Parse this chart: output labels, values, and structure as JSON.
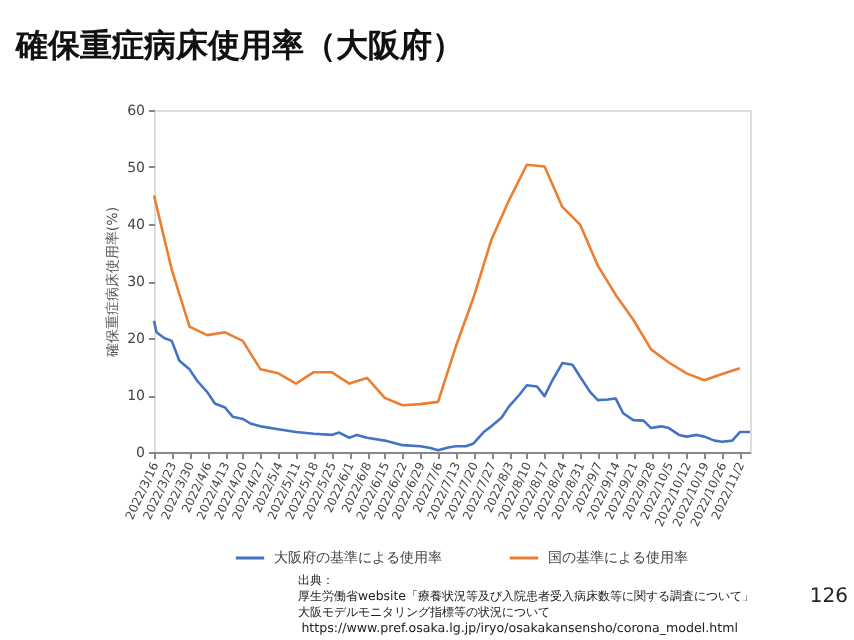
{
  "chart_data": {
    "type": "line",
    "title": "確保重症病床使用率（大阪府）",
    "ylabel": "確保重症病床使用率(%)",
    "xlim": [
      "2022-03-16",
      "2022-11-06"
    ],
    "xticks": [
      {
        "value": "2022-03-16",
        "label": "2022/3/16"
      },
      {
        "value": "2022-03-23",
        "label": "2022/3/23"
      },
      {
        "value": "2022-03-30",
        "label": "2022/3/30"
      },
      {
        "value": "2022-04-06",
        "label": "2022/4/6"
      },
      {
        "value": "2022-04-13",
        "label": "2022/4/13"
      },
      {
        "value": "2022-04-20",
        "label": "2022/4/20"
      },
      {
        "value": "2022-04-27",
        "label": "2022/4/27"
      },
      {
        "value": "2022-05-04",
        "label": "2022/5/4"
      },
      {
        "value": "2022-05-11",
        "label": "2022/5/11"
      },
      {
        "value": "2022-05-18",
        "label": "2022/5/18"
      },
      {
        "value": "2022-05-25",
        "label": "2022/5/25"
      },
      {
        "value": "2022-06-01",
        "label": "2022/6/1"
      },
      {
        "value": "2022-06-08",
        "label": "2022/6/8"
      },
      {
        "value": "2022-06-15",
        "label": "2022/6/15"
      },
      {
        "value": "2022-06-22",
        "label": "2022/6/22"
      },
      {
        "value": "2022-06-29",
        "label": "2022/6/29"
      },
      {
        "value": "2022-07-06",
        "label": "2022/7/6"
      },
      {
        "value": "2022-07-13",
        "label": "2022/7/13"
      },
      {
        "value": "2022-07-20",
        "label": "2022/7/20"
      },
      {
        "value": "2022-07-27",
        "label": "2022/7/27"
      },
      {
        "value": "2022-08-03",
        "label": "2022/8/3"
      },
      {
        "value": "2022-08-10",
        "label": "2022/8/10"
      },
      {
        "value": "2022-08-17",
        "label": "2022/8/17"
      },
      {
        "value": "2022-08-24",
        "label": "2022/8/24"
      },
      {
        "value": "2022-08-31",
        "label": "2022/8/31"
      },
      {
        "value": "2022-09-07",
        "label": "2022/9/7"
      },
      {
        "value": "2022-09-14",
        "label": "2022/9/14"
      },
      {
        "value": "2022-09-21",
        "label": "2022/9/21"
      },
      {
        "value": "2022-09-28",
        "label": "2022/9/28"
      },
      {
        "value": "2022-10-05",
        "label": "2022/10/5"
      },
      {
        "value": "2022-10-12",
        "label": "2022/10/12"
      },
      {
        "value": "2022-10-19",
        "label": "2022/10/19"
      },
      {
        "value": "2022-10-26",
        "label": "2022/10/26"
      },
      {
        "value": "2022-11-02",
        "label": "2022/11/2"
      }
    ],
    "ylim": [
      0,
      60
    ],
    "yticks": [
      0,
      10,
      20,
      30,
      40,
      50,
      60
    ],
    "grid": false,
    "legend": "bottom",
    "marker": "none",
    "line_style": "solid",
    "series": [
      {
        "name": "大阪府の基準による使用率",
        "color": "#4472c4",
        "x": [
          "2022-03-16",
          "2022-03-17",
          "2022-03-20",
          "2022-03-23",
          "2022-03-26",
          "2022-03-30",
          "2022-04-02",
          "2022-04-06",
          "2022-04-09",
          "2022-04-13",
          "2022-04-16",
          "2022-04-20",
          "2022-04-23",
          "2022-04-27",
          "2022-05-04",
          "2022-05-11",
          "2022-05-18",
          "2022-05-25",
          "2022-05-28",
          "2022-06-01",
          "2022-06-04",
          "2022-06-08",
          "2022-06-15",
          "2022-06-22",
          "2022-06-29",
          "2022-07-03",
          "2022-07-06",
          "2022-07-10",
          "2022-07-13",
          "2022-07-17",
          "2022-07-20",
          "2022-07-24",
          "2022-07-27",
          "2022-07-31",
          "2022-08-03",
          "2022-08-07",
          "2022-08-10",
          "2022-08-14",
          "2022-08-17",
          "2022-08-20",
          "2022-08-24",
          "2022-08-28",
          "2022-08-31",
          "2022-09-04",
          "2022-09-07",
          "2022-09-11",
          "2022-09-14",
          "2022-09-17",
          "2022-09-21",
          "2022-09-25",
          "2022-09-28",
          "2022-10-02",
          "2022-10-05",
          "2022-10-09",
          "2022-10-12",
          "2022-10-16",
          "2022-10-19",
          "2022-10-23",
          "2022-10-26",
          "2022-10-30",
          "2022-11-02",
          "2022-11-06"
        ],
        "values": [
          23,
          21,
          20,
          19.5,
          16,
          14.5,
          12.5,
          10.5,
          8.5,
          7.8,
          6.2,
          5.8,
          5,
          4.5,
          4,
          3.5,
          3.2,
          3,
          3.4,
          2.5,
          3,
          2.5,
          2,
          1.2,
          1,
          0.7,
          0.3,
          0.8,
          1,
          1,
          1.5,
          3.5,
          4.5,
          6,
          8,
          10,
          11.7,
          11.5,
          9.8,
          12.5,
          15.6,
          15.3,
          13.2,
          10.5,
          9.1,
          9.2,
          9.4,
          6.8,
          5.6,
          5.5,
          4.2,
          4.5,
          4.2,
          3,
          2.7,
          3,
          2.7,
          2,
          1.8,
          2,
          3.5,
          3.5
        ]
      },
      {
        "name": "国の基準による使用率",
        "color": "#ed7d31",
        "x": [
          "2022-03-16",
          "2022-03-23",
          "2022-03-30",
          "2022-04-06",
          "2022-04-13",
          "2022-04-20",
          "2022-04-27",
          "2022-05-04",
          "2022-05-11",
          "2022-05-18",
          "2022-05-25",
          "2022-06-01",
          "2022-06-08",
          "2022-06-15",
          "2022-06-22",
          "2022-06-29",
          "2022-07-06",
          "2022-07-13",
          "2022-07-20",
          "2022-07-27",
          "2022-08-03",
          "2022-08-10",
          "2022-08-17",
          "2022-08-24",
          "2022-08-31",
          "2022-09-07",
          "2022-09-14",
          "2022-09-21",
          "2022-09-28",
          "2022-10-05",
          "2022-10-12",
          "2022-10-19",
          "2022-10-26",
          "2022-11-02"
        ],
        "values": [
          45,
          32,
          22,
          20.5,
          21,
          19.5,
          14.5,
          13.8,
          12,
          14,
          14,
          12,
          13,
          9.5,
          8.2,
          8.4,
          8.8,
          18.5,
          27.1,
          37.2,
          44.2,
          50.4,
          50.1,
          43,
          39.9,
          32.7,
          27.6,
          23.2,
          18,
          15.7,
          13.8,
          12.6,
          13.7,
          14.7
        ]
      }
    ],
    "annotations": [
      "出典：",
      "厚生労働省website「療養状況等及び入院患者受入病床数等に関する調査について」",
      "大阪モデルモニタリング指標等の状況について",
      "https://www.pref.osaka.lg.jp/iryo/osakakansensho/corona_model.html",
      "126"
    ]
  }
}
